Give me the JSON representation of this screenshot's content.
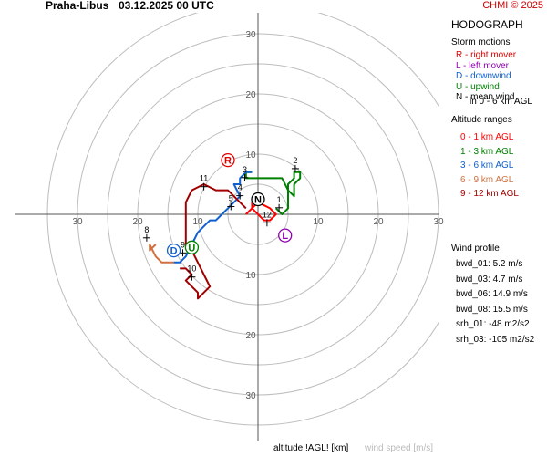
{
  "header": {
    "station": "Praha-Libus",
    "datetime": "03.12.2025 00 UTC",
    "copyright": "CHMI © 2025"
  },
  "panel": {
    "title": "HODOGRAPH",
    "storm_motions_heading": "Storm motions",
    "storm_motions": [
      {
        "text": "R - right mover",
        "color": "#e00000"
      },
      {
        "text": "L - left mover",
        "color": "#9000b0"
      },
      {
        "text": "D - downwind",
        "color": "#1060d0"
      },
      {
        "text": "U - upwind",
        "color": "#008000"
      },
      {
        "text": "N - mean wind",
        "color": "#000000"
      }
    ],
    "storm_motions_note": "in 0 - 6 km AGL",
    "altitude_heading": "Altitude ranges",
    "altitude_ranges": [
      {
        "text": "0 - 1 km AGL",
        "color": "#ff0000"
      },
      {
        "text": "1 - 3 km AGL",
        "color": "#008000"
      },
      {
        "text": "3 - 6 km AGL",
        "color": "#1060d0"
      },
      {
        "text": "6 - 9 km AGL",
        "color": "#d07040"
      },
      {
        "text": "9 - 12 km AGL",
        "color": "#a00000"
      }
    ],
    "wind_profile_heading": "Wind profile",
    "wind_profile": [
      "bwd_01: 5.2 m/s",
      "bwd_03: 4.7 m/s",
      "bwd_06: 14.9 m/s",
      "bwd_08: 15.5 m/s"
    ],
    "srh": [
      "srh_01: -48 m2/s2",
      "srh_03: -105 m2/s2"
    ]
  },
  "footer": {
    "altitude_label": "altitude !AGL! [km]",
    "speed_label": "wind speed [m/s]"
  },
  "chart_data": {
    "type": "line",
    "rings": [
      5,
      10,
      15,
      20,
      25,
      30,
      35
    ],
    "ring_labels": [
      10,
      20,
      30
    ],
    "xlim": [
      -40,
      40
    ],
    "ylim": [
      -40,
      40
    ],
    "series": [
      {
        "range": "0 - 1 km AGL",
        "color": "#ff0000",
        "points": [
          [
            -2,
            0
          ],
          [
            -1,
            1
          ],
          [
            0,
            2
          ],
          [
            2,
            1
          ],
          [
            3,
            0
          ],
          [
            2,
            -1
          ],
          [
            1,
            -1
          ],
          [
            0,
            0
          ],
          [
            -1,
            1
          ],
          [
            -1,
            2
          ]
        ]
      },
      {
        "range": "1 - 3 km AGL",
        "color": "#008000",
        "points": [
          [
            3,
            1
          ],
          [
            4,
            0
          ],
          [
            5,
            1
          ],
          [
            5,
            3
          ],
          [
            5,
            5
          ],
          [
            6,
            6
          ],
          [
            6,
            7
          ],
          [
            7,
            7
          ],
          [
            7,
            6
          ],
          [
            6,
            5
          ],
          [
            6,
            3
          ],
          [
            5,
            4
          ],
          [
            4,
            6
          ],
          [
            3,
            6
          ],
          [
            2,
            6
          ],
          [
            1,
            6
          ],
          [
            0,
            6
          ],
          [
            -1,
            6
          ],
          [
            -2,
            6
          ],
          [
            -2,
            7
          ],
          [
            -1,
            7
          ]
        ]
      },
      {
        "range": "3 - 6 km AGL",
        "color": "#1060d0",
        "points": [
          [
            -1,
            7
          ],
          [
            -2,
            7
          ],
          [
            -3,
            6
          ],
          [
            -3,
            5
          ],
          [
            -4,
            5
          ],
          [
            -3,
            3
          ],
          [
            -4,
            2
          ],
          [
            -5,
            1
          ],
          [
            -6,
            0
          ],
          [
            -7,
            -1
          ],
          [
            -8,
            -1
          ],
          [
            -9,
            -2
          ],
          [
            -10,
            -3
          ],
          [
            -11,
            -5
          ],
          [
            -12,
            -7
          ],
          [
            -13,
            -8
          ],
          [
            -14,
            -8
          ]
        ]
      },
      {
        "range": "6 - 9 km AGL",
        "color": "#d07040",
        "points": [
          [
            -14,
            -8
          ],
          [
            -15,
            -8
          ],
          [
            -16,
            -8
          ],
          [
            -17,
            -7
          ],
          [
            -18,
            -5
          ],
          [
            -18,
            -6
          ],
          [
            -17,
            -5
          ]
        ]
      },
      {
        "range": "9 - 12 km AGL",
        "color": "#a00000",
        "points": [
          [
            -13,
            -9
          ],
          [
            -12,
            -9
          ],
          [
            -11,
            -10
          ],
          [
            -12,
            -11
          ],
          [
            -11,
            -12
          ],
          [
            -10,
            -13
          ],
          [
            -10,
            -14
          ],
          [
            -9,
            -13
          ],
          [
            -8,
            -12
          ],
          [
            -9,
            -10
          ],
          [
            -10,
            -8
          ],
          [
            -11,
            -6
          ],
          [
            -12,
            -5
          ],
          [
            -12,
            -3
          ],
          [
            -12,
            0
          ],
          [
            -12,
            2
          ],
          [
            -11,
            4
          ],
          [
            -9,
            5
          ],
          [
            -7,
            4
          ],
          [
            -5,
            4
          ],
          [
            -4,
            3
          ],
          [
            -3,
            2
          ],
          [
            -2,
            1
          ]
        ]
      }
    ],
    "height_labels": [
      {
        "text": "1",
        "x": 3.5,
        "y": 2
      },
      {
        "text": "2",
        "x": 6.2,
        "y": 8.5
      },
      {
        "text": "3",
        "x": -2.2,
        "y": 7
      },
      {
        "text": "4",
        "x": -3,
        "y": 4
      },
      {
        "text": "5",
        "x": -4.5,
        "y": 2.2
      },
      {
        "text": "8",
        "x": -18.5,
        "y": -3
      },
      {
        "text": "9",
        "x": -12.5,
        "y": -5.5
      },
      {
        "text": "10",
        "x": -11,
        "y": -9.5
      },
      {
        "text": "11",
        "x": -9,
        "y": 5.5
      },
      {
        "text": "12",
        "x": 1.5,
        "y": -0.5
      }
    ],
    "storm_markers": [
      {
        "label": "R",
        "x": -5,
        "y": 9,
        "color": "#e00000"
      },
      {
        "label": "L",
        "x": 4.5,
        "y": -3.5,
        "color": "#9000b0"
      },
      {
        "label": "D",
        "x": -14,
        "y": -6,
        "color": "#1060d0"
      },
      {
        "label": "U",
        "x": -11,
        "y": -5.5,
        "color": "#008000"
      },
      {
        "label": "N",
        "x": 0,
        "y": 2.5,
        "color": "#000000"
      }
    ]
  }
}
